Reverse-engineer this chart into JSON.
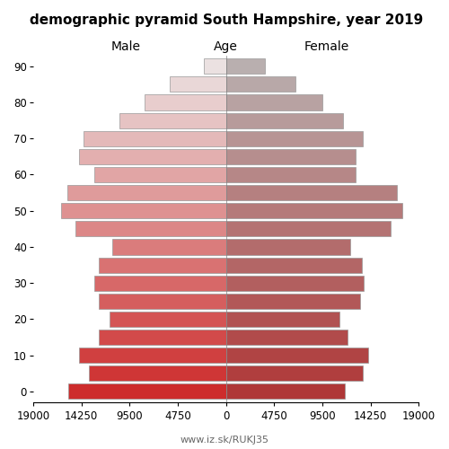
{
  "title": "demographic pyramid South Hampshire, year 2019",
  "male_label": "Male",
  "female_label": "Female",
  "age_label": "Age",
  "footer": "www.iz.sk/RUKJ35",
  "age_groups": [
    0,
    5,
    10,
    15,
    20,
    25,
    30,
    35,
    40,
    45,
    50,
    55,
    60,
    65,
    70,
    75,
    80,
    85,
    90
  ],
  "male_values": [
    15500,
    13500,
    14500,
    12500,
    11500,
    12500,
    13000,
    12500,
    11200,
    14800,
    16200,
    15600,
    13000,
    14500,
    14000,
    10500,
    8000,
    5500,
    2200
  ],
  "female_values": [
    11700,
    13500,
    14000,
    12000,
    11200,
    13200,
    13600,
    13400,
    12200,
    16200,
    17400,
    16800,
    12800,
    12800,
    13500,
    11500,
    9500,
    6800,
    3800
  ],
  "xlim": 19000,
  "title_fontsize": 11,
  "label_fontsize": 10,
  "tick_fontsize": 8.5,
  "bar_height": 0.85,
  "bg_color": "#ffffff",
  "edgecolor": "#999999",
  "linewidth": 0.5,
  "male_young_color": [
    205,
    44,
    44
  ],
  "male_old_color": [
    235,
    225,
    225
  ],
  "female_young_color": [
    175,
    55,
    55
  ],
  "female_old_color": [
    185,
    175,
    175
  ]
}
